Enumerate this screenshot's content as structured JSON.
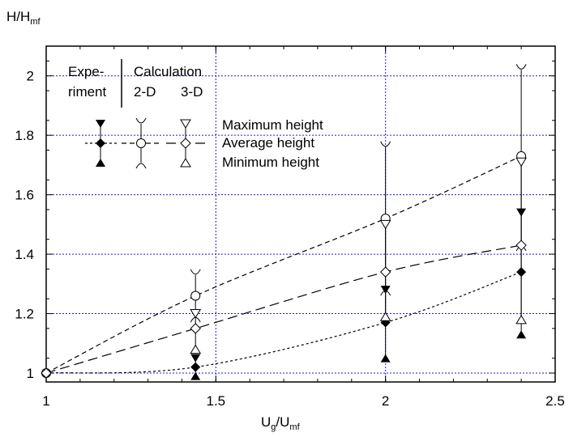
{
  "chart_data": {
    "type": "line",
    "title": "",
    "xlabel": "U",
    "xlabel_sub1": "g",
    "xlabel_mid": "/U",
    "xlabel_sub2": "mf",
    "ylabel": "H/H",
    "ylabel_sub": "mf",
    "xlim": [
      1,
      2.5
    ],
    "ylim": [
      0.97,
      2.1
    ],
    "xticks": [
      "1",
      "1.5",
      "2",
      "2.5"
    ],
    "yticks": [
      "1",
      "1.2",
      "1.4",
      "1.6",
      "1.8",
      "2"
    ],
    "grid": true,
    "legend": {
      "header_experiment_1": "Expe-",
      "header_experiment_2": "riment",
      "header_calculation": "Calculation",
      "col_2d": "2-D",
      "col_3d": "3-D",
      "max_label": "Maximum height",
      "avg_label": "Average height",
      "min_label": "Minimum height"
    },
    "series": [
      {
        "kind": "experiment",
        "marker": "filled-diamond",
        "line": "dotted",
        "x": [
          1,
          1.44,
          2,
          2.4
        ],
        "avg": [
          1,
          1.02,
          1.17,
          1.34
        ],
        "max": [
          1,
          1.05,
          1.28,
          1.54
        ],
        "min": [
          1,
          0.99,
          1.05,
          1.13
        ]
      },
      {
        "kind": "calculation-2d",
        "marker": "circle",
        "line": "dashed",
        "x": [
          1,
          1.44,
          2,
          2.4
        ],
        "avg": [
          1,
          1.26,
          1.52,
          1.73
        ],
        "max": [
          1,
          1.33,
          1.76,
          2.02
        ],
        "min": [
          1,
          1.19,
          1.28,
          1.43
        ]
      },
      {
        "kind": "calculation-3d",
        "marker": "open-diamond",
        "line": "long-dashed",
        "x": [
          1,
          1.44,
          2,
          2.4
        ],
        "avg": [
          1,
          1.15,
          1.34,
          1.43
        ],
        "max": [
          1,
          1.2,
          1.5,
          1.71
        ],
        "min": [
          1,
          1.08,
          1.19,
          1.18
        ]
      }
    ]
  }
}
